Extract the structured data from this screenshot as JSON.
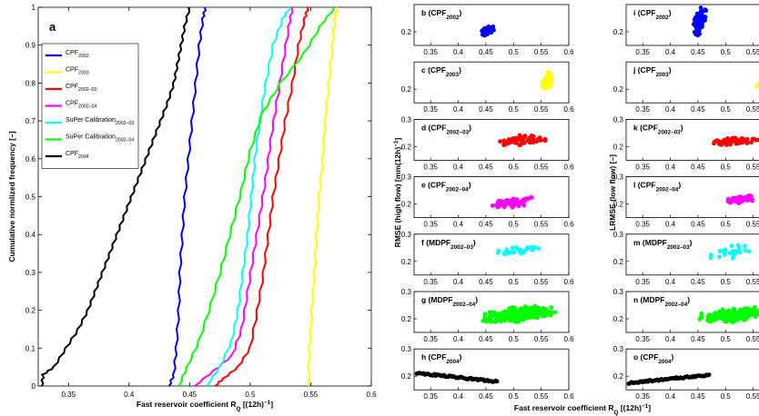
{
  "chart_data": [
    {
      "id": "a",
      "type": "line",
      "panel_label": "a",
      "xlabel": "Fast reservoir coefficient R",
      "xlabel_sub": "Q",
      "xlabel_tail": " [(12h)",
      "xlabel_sup": "−1",
      "xlabel_end": "]",
      "ylabel": "Cumulative normlized frequency [–]",
      "xlim": [
        0.325,
        0.6
      ],
      "ylim": [
        0,
        1
      ],
      "xticks": [
        "0.35",
        "0.4",
        "0.45",
        "0.5",
        "0.55",
        "0.6"
      ],
      "xtick_values": [
        0.35,
        0.4,
        0.45,
        0.5,
        0.55,
        0.6
      ],
      "yticks": [
        "0",
        "0.1",
        "0.2",
        "0.3",
        "0.4",
        "0.5",
        "0.6",
        "0.7",
        "0.8",
        "0.9",
        "1"
      ],
      "ytick_values": [
        0,
        0.1,
        0.2,
        0.3,
        0.4,
        0.5,
        0.6,
        0.7,
        0.8,
        0.9,
        1
      ],
      "legend_position": "top-left",
      "series": [
        {
          "name": "CPF",
          "sub": "2002",
          "color": "#0000ff",
          "points": [
            [
              0.433,
              0
            ],
            [
              0.437,
              0.03
            ],
            [
              0.439,
              0.1
            ],
            [
              0.441,
              0.2
            ],
            [
              0.442,
              0.3
            ],
            [
              0.444,
              0.4
            ],
            [
              0.446,
              0.5
            ],
            [
              0.449,
              0.6
            ],
            [
              0.452,
              0.7
            ],
            [
              0.455,
              0.8
            ],
            [
              0.458,
              0.9
            ],
            [
              0.461,
              0.97
            ],
            [
              0.463,
              1
            ]
          ]
        },
        {
          "name": "CPF",
          "sub": "2003",
          "color": "#ffff00",
          "points": [
            [
              0.548,
              0
            ],
            [
              0.549,
              0.1
            ],
            [
              0.551,
              0.2
            ],
            [
              0.553,
              0.3
            ],
            [
              0.555,
              0.4
            ],
            [
              0.557,
              0.5
            ],
            [
              0.56,
              0.6
            ],
            [
              0.562,
              0.7
            ],
            [
              0.565,
              0.8
            ],
            [
              0.568,
              0.9
            ],
            [
              0.57,
              0.97
            ],
            [
              0.572,
              1
            ]
          ]
        },
        {
          "name": "CPF",
          "sub": "2002–03",
          "color": "#ff0000",
          "points": [
            [
              0.471,
              0
            ],
            [
              0.478,
              0.02
            ],
            [
              0.49,
              0.05
            ],
            [
              0.5,
              0.1
            ],
            [
              0.506,
              0.2
            ],
            [
              0.511,
              0.3
            ],
            [
              0.515,
              0.4
            ],
            [
              0.519,
              0.5
            ],
            [
              0.524,
              0.6
            ],
            [
              0.529,
              0.7
            ],
            [
              0.535,
              0.8
            ],
            [
              0.54,
              0.9
            ],
            [
              0.545,
              0.97
            ],
            [
              0.548,
              1
            ]
          ]
        },
        {
          "name": "CPF",
          "sub": "2002–04",
          "color": "#ff00ff",
          "points": [
            [
              0.454,
              0
            ],
            [
              0.47,
              0.04
            ],
            [
              0.485,
              0.08
            ],
            [
              0.493,
              0.15
            ],
            [
              0.498,
              0.25
            ],
            [
              0.503,
              0.35
            ],
            [
              0.508,
              0.45
            ],
            [
              0.513,
              0.55
            ],
            [
              0.517,
              0.65
            ],
            [
              0.522,
              0.75
            ],
            [
              0.527,
              0.85
            ],
            [
              0.532,
              0.95
            ],
            [
              0.535,
              1
            ]
          ]
        },
        {
          "name": "SuPer Calibration",
          "sub": "2002–03",
          "color": "#00ffff",
          "points": [
            [
              0.464,
              0
            ],
            [
              0.475,
              0.05
            ],
            [
              0.485,
              0.12
            ],
            [
              0.49,
              0.2
            ],
            [
              0.494,
              0.3
            ],
            [
              0.498,
              0.4
            ],
            [
              0.501,
              0.5
            ],
            [
              0.504,
              0.6
            ],
            [
              0.508,
              0.7
            ],
            [
              0.513,
              0.8
            ],
            [
              0.519,
              0.9
            ],
            [
              0.527,
              0.97
            ],
            [
              0.533,
              1
            ]
          ]
        },
        {
          "name": "SuPer Calibration",
          "sub": "2002–04",
          "color": "#00ff00",
          "points": [
            [
              0.441,
              0
            ],
            [
              0.448,
              0.05
            ],
            [
              0.458,
              0.12
            ],
            [
              0.468,
              0.22
            ],
            [
              0.477,
              0.32
            ],
            [
              0.485,
              0.42
            ],
            [
              0.493,
              0.52
            ],
            [
              0.5,
              0.62
            ],
            [
              0.51,
              0.72
            ],
            [
              0.525,
              0.8
            ],
            [
              0.545,
              0.88
            ],
            [
              0.558,
              0.95
            ],
            [
              0.57,
              1
            ]
          ]
        },
        {
          "name": "CPF",
          "sub": "2004",
          "color": "#000000",
          "points": [
            [
              0.328,
              0
            ],
            [
              0.329,
              0.03
            ],
            [
              0.338,
              0.05
            ],
            [
              0.348,
              0.1
            ],
            [
              0.358,
              0.15
            ],
            [
              0.366,
              0.2
            ],
            [
              0.372,
              0.25
            ],
            [
              0.378,
              0.3
            ],
            [
              0.384,
              0.35
            ],
            [
              0.39,
              0.4
            ],
            [
              0.396,
              0.45
            ],
            [
              0.402,
              0.5
            ],
            [
              0.408,
              0.55
            ],
            [
              0.414,
              0.6
            ],
            [
              0.42,
              0.65
            ],
            [
              0.426,
              0.7
            ],
            [
              0.432,
              0.75
            ],
            [
              0.437,
              0.8
            ],
            [
              0.44,
              0.85
            ],
            [
              0.443,
              0.9
            ],
            [
              0.446,
              0.95
            ],
            [
              0.45,
              1
            ]
          ]
        }
      ]
    },
    {
      "type": "scatter",
      "common_xlabel": "Fast reservoir coefficient R",
      "common_xlabel_sub": "Q",
      "common_xlabel_tail": " [(12h)",
      "common_xlabel_sup": "−1",
      "common_xlabel_end": "]",
      "left_ylabel": "RMSE (high flow) [mm(12h)",
      "left_ylabel_sup": "−1",
      "left_ylabel_end": "]",
      "right_ylabel": "LRMSE (low flow) [–]",
      "xlim": [
        0.32,
        0.6
      ],
      "xticks": [
        "0.35",
        "0.4",
        "0.45",
        "0.5",
        "0.55",
        "0.6"
      ],
      "xtick_values": [
        0.35,
        0.4,
        0.45,
        0.5,
        0.55,
        0.6
      ],
      "panels": [
        {
          "id": "b",
          "title": "b (CPF",
          "sub": "2002",
          "close": ")",
          "color": "#0000ff",
          "col": 0,
          "row": 0,
          "ylim": [
            0.15,
            0.3
          ],
          "yticks": [
            "0.2"
          ],
          "ytick_values": [
            0.2
          ],
          "cloud": {
            "xmin": 0.44,
            "xmax": 0.465,
            "ymin": 0.185,
            "ymax": 0.225,
            "n": 60
          }
        },
        {
          "id": "c",
          "title": "c (CPF",
          "sub": "2003",
          "close": ")",
          "color": "#ffff00",
          "col": 0,
          "row": 1,
          "ylim": [
            0.15,
            0.3
          ],
          "yticks": [
            "0.2"
          ],
          "ytick_values": [
            0.2
          ],
          "cloud": {
            "xmin": 0.552,
            "xmax": 0.572,
            "ymin": 0.19,
            "ymax": 0.265,
            "n": 60
          }
        },
        {
          "id": "d",
          "title": "d (CPF",
          "sub": "2002–03",
          "close": ")",
          "color": "#ff0000",
          "col": 0,
          "row": 2,
          "ylim": [
            0.15,
            0.3
          ],
          "yticks": [
            "0.3",
            "0.2"
          ],
          "ytick_values": [
            0.3,
            0.2
          ],
          "cloud": {
            "xmin": 0.47,
            "xmax": 0.565,
            "ymin": 0.2,
            "ymax": 0.245,
            "n": 70
          }
        },
        {
          "id": "e",
          "title": "e (CPF",
          "sub": "2002–04",
          "close": ")",
          "color": "#ff00ff",
          "col": 0,
          "row": 3,
          "ylim": [
            0.15,
            0.3
          ],
          "yticks": [
            "0.3",
            "0.2"
          ],
          "ytick_values": [
            0.3,
            0.2
          ],
          "cloud": {
            "xmin": 0.455,
            "xmax": 0.545,
            "ymin": 0.185,
            "ymax": 0.225,
            "n": 60
          }
        },
        {
          "id": "f",
          "title": "f (MDPF",
          "sub": "2002–03",
          "close": ")",
          "color": "#00ffff",
          "col": 0,
          "row": 4,
          "ylim": [
            0.15,
            0.3
          ],
          "yticks": [
            "0.3",
            "0.2"
          ],
          "ytick_values": [
            0.3,
            0.2
          ],
          "cloud": {
            "xmin": 0.47,
            "xmax": 0.55,
            "ymin": 0.22,
            "ymax": 0.26,
            "n": 30
          }
        },
        {
          "id": "g",
          "title": "g (MDPF",
          "sub": "2002–04",
          "close": ")",
          "color": "#00ff00",
          "col": 0,
          "row": 5,
          "ylim": [
            0.15,
            0.3
          ],
          "yticks": [
            "0.3",
            "0.2"
          ],
          "ytick_values": [
            0.3,
            0.2
          ],
          "cloud": {
            "xmin": 0.44,
            "xmax": 0.58,
            "ymin": 0.185,
            "ymax": 0.25,
            "n": 260
          }
        },
        {
          "id": "h",
          "title": "h (CPF",
          "sub": "2004",
          "close": ")",
          "color": "#000000",
          "col": 0,
          "row": 6,
          "ylim": [
            0.15,
            0.3
          ],
          "yticks": [
            "0.3",
            "0.2"
          ],
          "ytick_values": [
            0.3,
            0.2
          ],
          "trend": {
            "x0": 0.325,
            "x1": 0.47,
            "y0": 0.212,
            "y1": 0.18,
            "n": 60
          }
        },
        {
          "id": "i",
          "title": "i (CPF",
          "sub": "2002",
          "close": ")",
          "color": "#0000ff",
          "col": 1,
          "row": 0,
          "ylim": [
            0.15,
            0.3
          ],
          "yticks": [
            "0.2"
          ],
          "ytick_values": [
            0.2
          ],
          "cloud": {
            "xmin": 0.44,
            "xmax": 0.465,
            "ymin": 0.18,
            "ymax": 0.29,
            "n": 80
          }
        },
        {
          "id": "j",
          "title": "j (CPF",
          "sub": "2003",
          "close": ")",
          "color": "#ffff00",
          "col": 1,
          "row": 1,
          "ylim": [
            0.15,
            0.3
          ],
          "yticks": [
            "0.2"
          ],
          "ytick_values": [
            0.2
          ],
          "cloud": {
            "xmin": 0.555,
            "xmax": 0.572,
            "ymin": 0.2,
            "ymax": 0.23,
            "n": 30
          }
        },
        {
          "id": "k",
          "title": "k (CPF",
          "sub": "2002–03",
          "close": ")",
          "color": "#ff0000",
          "col": 1,
          "row": 2,
          "ylim": [
            0.15,
            0.3
          ],
          "yticks": [
            "0.3",
            "0.2"
          ],
          "ytick_values": [
            0.3,
            0.2
          ],
          "cloud": {
            "xmin": 0.47,
            "xmax": 0.565,
            "ymin": 0.205,
            "ymax": 0.235,
            "n": 60
          }
        },
        {
          "id": "l",
          "title": "l (CPF",
          "sub": "2002–04",
          "close": ")",
          "color": "#ff00ff",
          "col": 1,
          "row": 3,
          "ylim": [
            0.15,
            0.3
          ],
          "yticks": [
            "0.3",
            "0.2"
          ],
          "ytick_values": [
            0.3,
            0.2
          ],
          "cloud": {
            "xmin": 0.49,
            "xmax": 0.555,
            "ymin": 0.195,
            "ymax": 0.235,
            "n": 50
          }
        },
        {
          "id": "m",
          "title": "m (MDPF",
          "sub": "2002–03",
          "close": ")",
          "color": "#00ffff",
          "col": 1,
          "row": 4,
          "ylim": [
            0.15,
            0.3
          ],
          "yticks": [
            "0.3",
            "0.2"
          ],
          "ytick_values": [
            0.3,
            0.2
          ],
          "cloud": {
            "xmin": 0.47,
            "xmax": 0.55,
            "ymin": 0.205,
            "ymax": 0.26,
            "n": 25
          }
        },
        {
          "id": "n",
          "title": "n (MDPF",
          "sub": "2002–04",
          "close": ")",
          "color": "#00ff00",
          "col": 1,
          "row": 5,
          "ylim": [
            0.15,
            0.3
          ],
          "yticks": [
            "0.3",
            "0.2"
          ],
          "ytick_values": [
            0.3,
            0.2
          ],
          "cloud": {
            "xmin": 0.44,
            "xmax": 0.6,
            "ymin": 0.185,
            "ymax": 0.245,
            "n": 200
          }
        },
        {
          "id": "o",
          "title": "o (CPF",
          "sub": "2004",
          "close": ")",
          "color": "#000000",
          "col": 1,
          "row": 6,
          "ylim": [
            0.15,
            0.3
          ],
          "yticks": [
            "0.3",
            "0.2"
          ],
          "ytick_values": [
            0.3,
            0.2
          ],
          "trend": {
            "x0": 0.325,
            "x1": 0.47,
            "y0": 0.175,
            "y1": 0.205,
            "n": 60
          }
        }
      ]
    }
  ]
}
